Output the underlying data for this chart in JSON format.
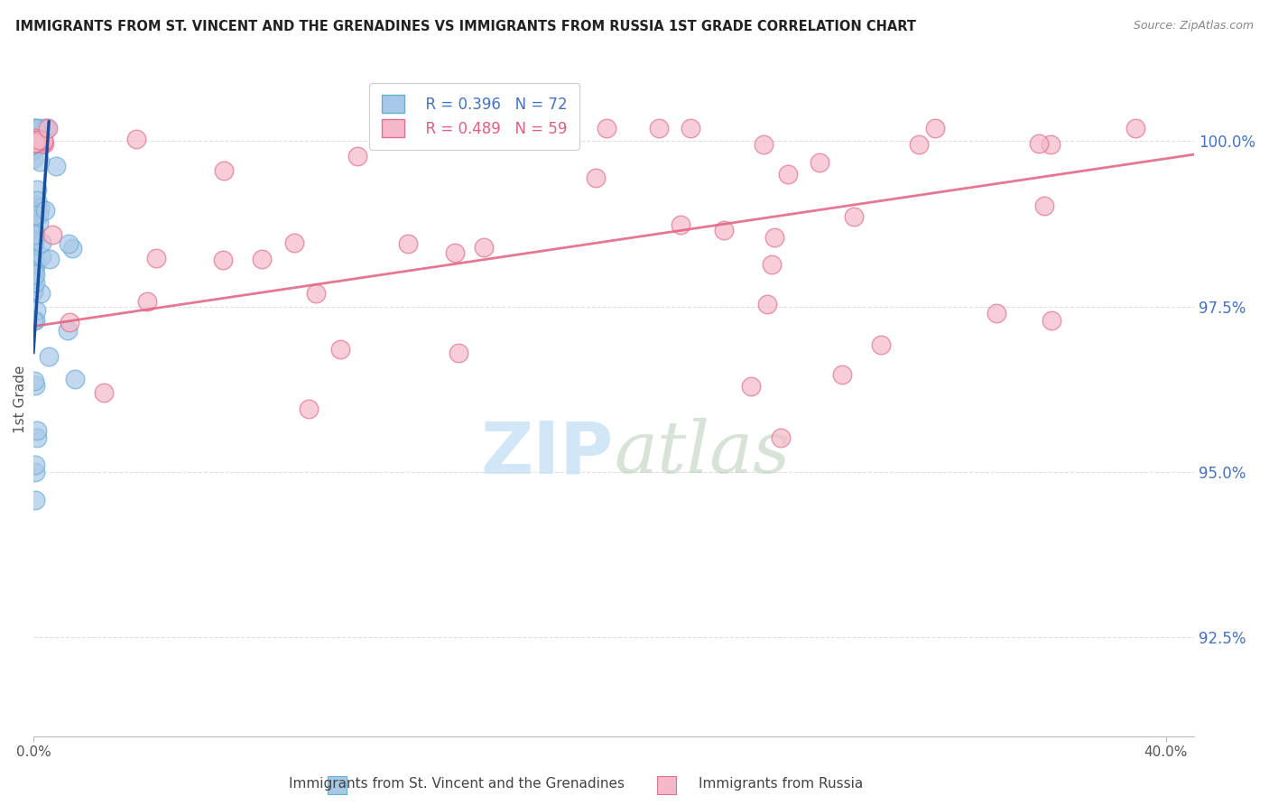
{
  "title": "IMMIGRANTS FROM ST. VINCENT AND THE GRENADINES VS IMMIGRANTS FROM RUSSIA 1ST GRADE CORRELATION CHART",
  "source": "Source: ZipAtlas.com",
  "ylabel": "1st Grade",
  "ytick_values": [
    100.0,
    97.5,
    95.0,
    92.5
  ],
  "xlim": [
    0.0,
    41.0
  ],
  "ylim": [
    91.0,
    101.2
  ],
  "legend_blue_r": "R = 0.396",
  "legend_blue_n": "N = 72",
  "legend_pink_r": "R = 0.489",
  "legend_pink_n": "N = 59",
  "legend_label_blue": "Immigrants from St. Vincent and the Grenadines",
  "legend_label_pink": "Immigrants from Russia",
  "blue_color": "#a8c8e8",
  "blue_edge_color": "#6aaed6",
  "pink_color": "#f4b8c8",
  "pink_edge_color": "#e07090",
  "blue_line_color": "#1a4fa0",
  "pink_line_color": "#e06080",
  "background_color": "#ffffff",
  "title_color": "#222222",
  "source_color": "#888888",
  "ytick_color": "#4472c4",
  "grid_color": "#cccccc",
  "watermark_color": "#cce4f5"
}
